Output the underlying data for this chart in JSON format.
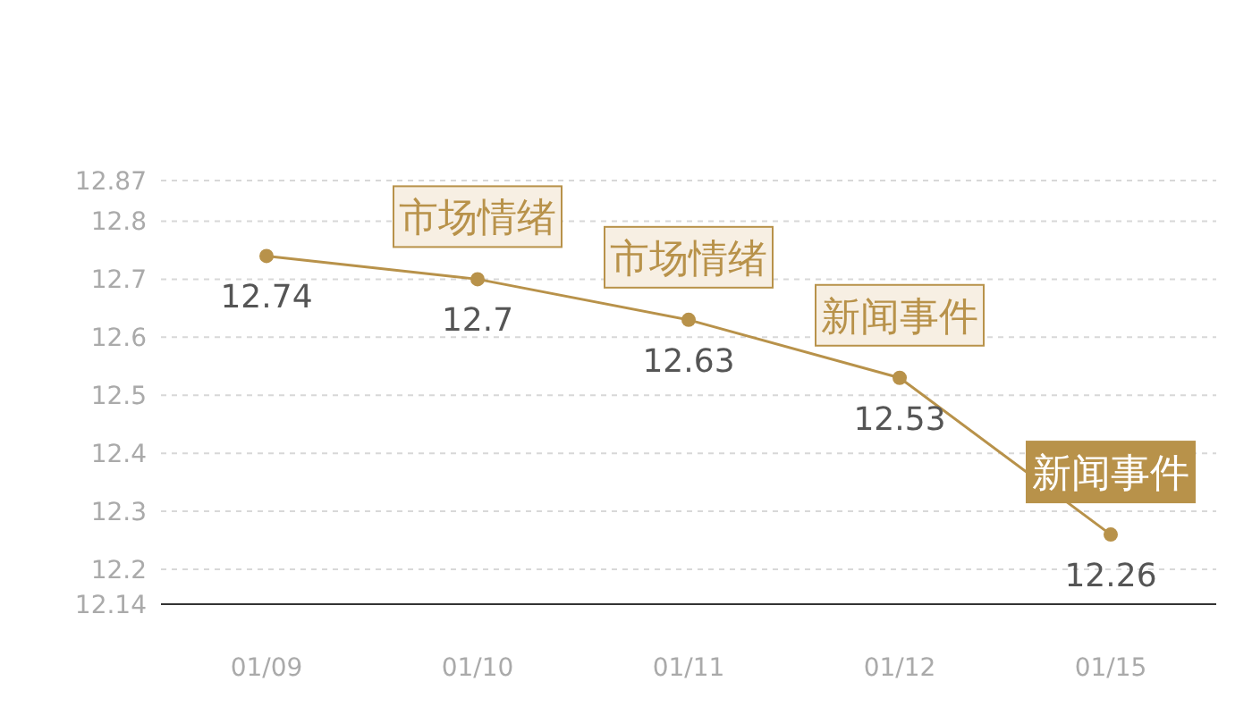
{
  "chart_data": {
    "type": "line",
    "categories": [
      "01/09",
      "01/10",
      "01/11",
      "01/12",
      "01/15"
    ],
    "series": [
      {
        "color": "#b8924a",
        "values": [
          12.74,
          12.7,
          12.63,
          12.53,
          12.26
        ]
      }
    ],
    "ylim": [
      12.14,
      12.87
    ],
    "yticks": [
      12.14,
      12.2,
      12.3,
      12.4,
      12.5,
      12.6,
      12.7,
      12.8,
      12.87
    ],
    "grid": "y",
    "marker": "circle",
    "data_labels": true,
    "annotations": [
      {
        "text": "市场情绪",
        "x": "01/10",
        "y": 12.7
      },
      {
        "text": "市场情绪",
        "x": "01/11",
        "y": 12.63
      },
      {
        "text": "新闻事件",
        "x": "01/12",
        "y": 12.53
      },
      {
        "text": "新闻事件",
        "x": "01/15",
        "y": 12.26
      }
    ]
  }
}
